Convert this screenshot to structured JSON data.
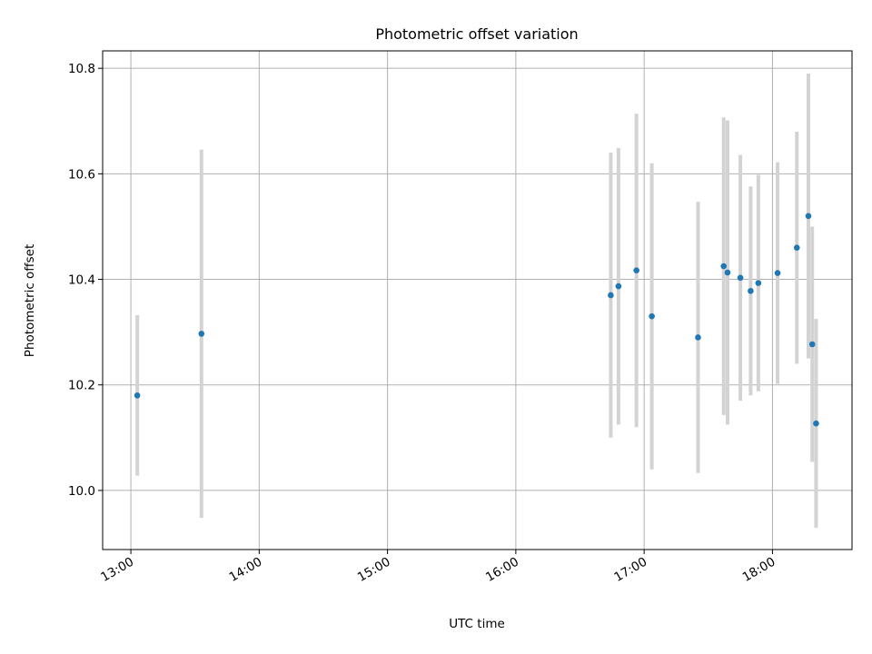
{
  "chart_data": {
    "type": "scatter",
    "title": "Photometric offset variation",
    "xlabel": "UTC time",
    "ylabel": "Photometric offset",
    "grid": true,
    "x_unit": "hour (UTC)",
    "xlim": [
      12.78,
      18.62
    ],
    "ylim": [
      9.888,
      10.833
    ],
    "x_ticks": [
      {
        "value": 13,
        "label": "13:00"
      },
      {
        "value": 14,
        "label": "14:00"
      },
      {
        "value": 15,
        "label": "15:00"
      },
      {
        "value": 16,
        "label": "16:00"
      },
      {
        "value": 17,
        "label": "17:00"
      },
      {
        "value": 18,
        "label": "18:00"
      }
    ],
    "y_ticks": [
      {
        "value": 10.0,
        "label": "10.0"
      },
      {
        "value": 10.2,
        "label": "10.2"
      },
      {
        "value": 10.4,
        "label": "10.4"
      },
      {
        "value": 10.6,
        "label": "10.6"
      },
      {
        "value": 10.8,
        "label": "10.8"
      }
    ],
    "colors": {
      "point": "#1f77b4",
      "errorbar": "#d3d3d3"
    },
    "points": [
      {
        "x": 13.05,
        "y": 10.18,
        "err": 0.152
      },
      {
        "x": 13.55,
        "y": 10.297,
        "err": 0.349
      },
      {
        "x": 16.74,
        "y": 10.37,
        "err": 0.27
      },
      {
        "x": 16.8,
        "y": 10.387,
        "err": 0.262
      },
      {
        "x": 16.94,
        "y": 10.417,
        "err": 0.297
      },
      {
        "x": 17.06,
        "y": 10.33,
        "err": 0.29
      },
      {
        "x": 17.42,
        "y": 10.29,
        "err": 0.257
      },
      {
        "x": 17.62,
        "y": 10.425,
        "err": 0.282
      },
      {
        "x": 17.65,
        "y": 10.413,
        "err": 0.288
      },
      {
        "x": 17.75,
        "y": 10.403,
        "err": 0.233
      },
      {
        "x": 17.83,
        "y": 10.378,
        "err": 0.198
      },
      {
        "x": 17.89,
        "y": 10.393,
        "err": 0.205
      },
      {
        "x": 18.04,
        "y": 10.412,
        "err": 0.21
      },
      {
        "x": 18.19,
        "y": 10.46,
        "err": 0.22
      },
      {
        "x": 18.28,
        "y": 10.52,
        "err": 0.27
      },
      {
        "x": 18.31,
        "y": 10.277,
        "err": 0.223
      },
      {
        "x": 18.34,
        "y": 10.127,
        "err": 0.198
      }
    ]
  }
}
